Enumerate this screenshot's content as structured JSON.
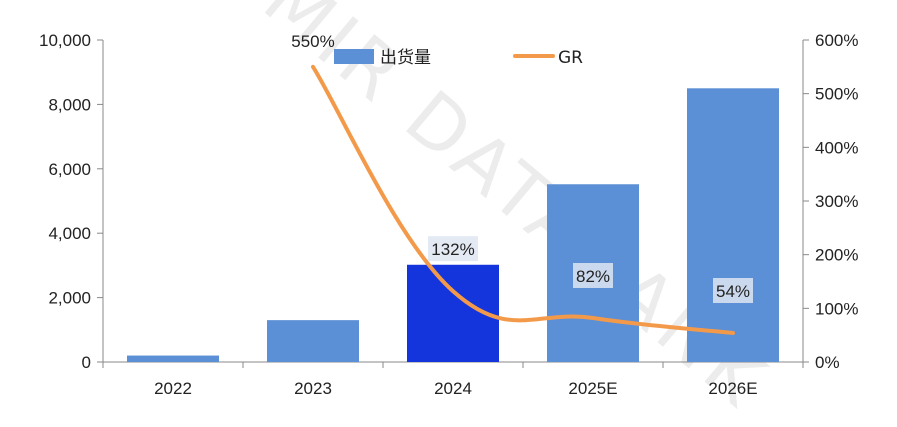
{
  "watermark": "MIR DATABANK",
  "colors": {
    "bar": "#5b8fd6",
    "bar_highlight": "#1535dc",
    "line": "#f39a4a",
    "axis": "#888888",
    "label_box": "#dfe6f2"
  },
  "chart_data": {
    "type": "bar",
    "categories": [
      "2022",
      "2023",
      "2024",
      "2025E",
      "2026E"
    ],
    "series": [
      {
        "name": "出货量",
        "type": "bar",
        "axis": "left",
        "values": [
          200,
          1300,
          3020,
          5520,
          8500
        ],
        "highlight_index": 2
      },
      {
        "name": "GR",
        "type": "line",
        "axis": "right",
        "values": [
          null,
          550,
          132,
          82,
          54
        ],
        "labels": [
          "",
          "550%",
          "132%",
          "82%",
          "54%"
        ]
      }
    ],
    "y_left": {
      "min": 0,
      "max": 10000,
      "ticks": [
        0,
        2000,
        4000,
        6000,
        8000,
        10000
      ],
      "tick_labels": [
        "0",
        "2,000",
        "4,000",
        "6,000",
        "8,000",
        "10,000"
      ]
    },
    "y_right": {
      "min": 0,
      "max": 600,
      "ticks": [
        0,
        100,
        200,
        300,
        400,
        500,
        600
      ],
      "tick_labels": [
        "0%",
        "100%",
        "200%",
        "300%",
        "400%",
        "500%",
        "600%"
      ]
    },
    "legend": {
      "position": "top",
      "items": [
        {
          "label": "出货量",
          "kind": "bar"
        },
        {
          "label": "GR",
          "kind": "line"
        }
      ]
    },
    "grid": false
  }
}
